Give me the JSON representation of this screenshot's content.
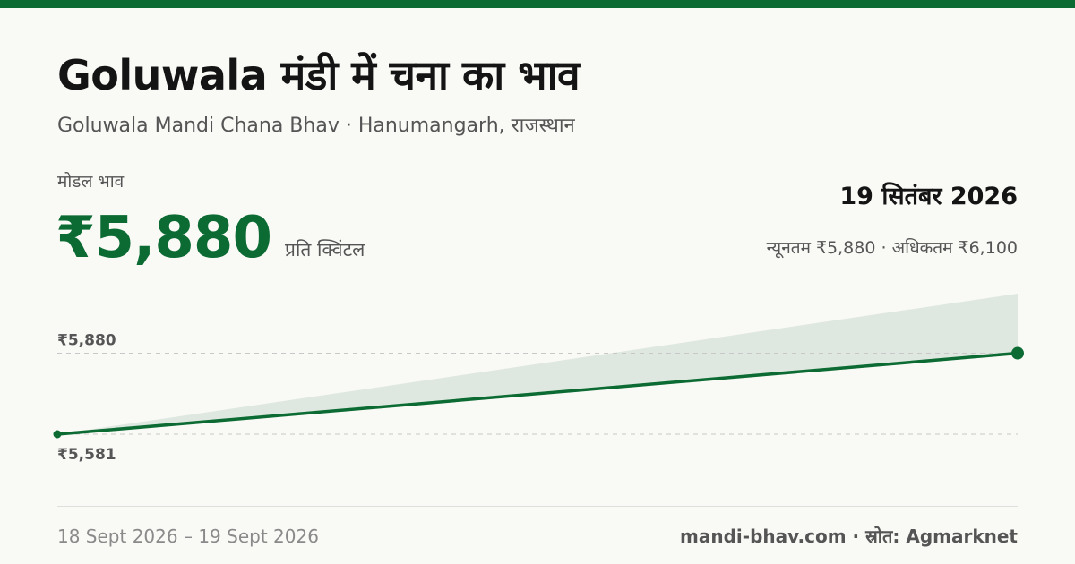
{
  "header": {
    "title": "Goluwala मंडी में चना का भाव",
    "subtitle": "Goluwala Mandi Chana Bhav · Hanumangarh, राजस्थान"
  },
  "price": {
    "label": "मोडल भाव",
    "value": "₹5,880",
    "unit": "प्रति क्विंटल"
  },
  "date": {
    "heading": "19 सितंबर 2026",
    "range_text": "न्यूनतम ₹5,880 · अधिकतम ₹6,100"
  },
  "footer": {
    "date_range": "18 Sept 2026 – 19 Sept 2026",
    "source": "mandi-bhav.com · स्रोत: Agmarknet"
  },
  "colors": {
    "accent": "#0b6b33",
    "band": "#dfe8e0",
    "grid": "#c8c8c8",
    "axis_label": "#555555"
  },
  "chart_data": {
    "type": "line",
    "x": [
      "18 Sept 2026",
      "19 Sept 2026"
    ],
    "series": [
      {
        "values": [
          5581,
          5880
        ]
      }
    ],
    "band": {
      "min": [
        5581,
        5880
      ],
      "max": [
        5581,
        6100
      ]
    },
    "yticks": [
      5581,
      5880
    ],
    "ytick_labels": [
      "₹5,581",
      "₹5,880"
    ],
    "ylim": [
      5581,
      6100
    ],
    "grid": "dashed-horizontal",
    "legend": "none"
  }
}
